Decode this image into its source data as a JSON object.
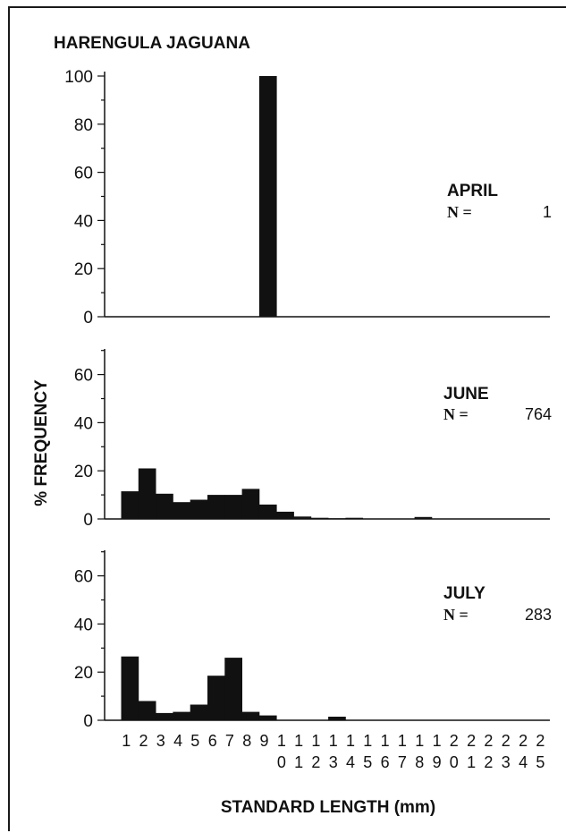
{
  "title": "HARENGULA JAGUANA",
  "ylabel": "% FREQUENCY",
  "xlabel": "STANDARD LENGTH (mm)",
  "x_tick_top": [
    "1",
    "2",
    "3",
    "4",
    "5",
    "6",
    "7",
    "8",
    "9",
    "1",
    "1",
    "1",
    "1",
    "1",
    "1",
    "1",
    "1",
    "1",
    "1",
    "2",
    "2",
    "2",
    "2",
    "2",
    "2"
  ],
  "x_tick_bottom": [
    "",
    "",
    "",
    "",
    "",
    "",
    "",
    "",
    "",
    "0",
    "1",
    "2",
    "3",
    "4",
    "5",
    "6",
    "7",
    "8",
    "9",
    "0",
    "1",
    "2",
    "3",
    "4",
    "5"
  ],
  "chart_data": [
    {
      "type": "bar",
      "panel": "April",
      "month_label": "APRIL",
      "n_label": "N  =",
      "n_value": "1",
      "categories": [
        "1",
        "2",
        "3",
        "4",
        "5",
        "6",
        "7",
        "8",
        "9",
        "10",
        "11",
        "12",
        "13",
        "14",
        "15",
        "16",
        "17",
        "18",
        "19",
        "20",
        "21",
        "22",
        "23",
        "24",
        "25"
      ],
      "values": [
        0,
        0,
        0,
        0,
        0,
        0,
        0,
        0,
        100,
        0,
        0,
        0,
        0,
        0,
        0,
        0,
        0,
        0,
        0,
        0,
        0,
        0,
        0,
        0,
        0
      ],
      "ylim": [
        0,
        100
      ],
      "yticks": [
        "0",
        "20",
        "40",
        "60",
        "80",
        "100"
      ],
      "xlabel": "STANDARD LENGTH (mm)",
      "ylabel": "% FREQUENCY"
    },
    {
      "type": "bar",
      "panel": "June",
      "month_label": "JUNE",
      "n_label": "N  =",
      "n_value": "764",
      "categories": [
        "1",
        "2",
        "3",
        "4",
        "5",
        "6",
        "7",
        "8",
        "9",
        "10",
        "11",
        "12",
        "13",
        "14",
        "15",
        "16",
        "17",
        "18",
        "19",
        "20",
        "21",
        "22",
        "23",
        "24",
        "25"
      ],
      "values": [
        11.5,
        21,
        10.5,
        7,
        8,
        10,
        10,
        12.5,
        6,
        3,
        1,
        0.5,
        0.3,
        0.5,
        0,
        0,
        0,
        0.8,
        0,
        0,
        0,
        0,
        0,
        0,
        0
      ],
      "ylim": [
        0,
        70
      ],
      "yticks": [
        "0",
        "20",
        "40",
        "60"
      ],
      "xlabel": "STANDARD LENGTH (mm)",
      "ylabel": "% FREQUENCY"
    },
    {
      "type": "bar",
      "panel": "July",
      "month_label": "JULY",
      "n_label": "N  =",
      "n_value": "283",
      "categories": [
        "1",
        "2",
        "3",
        "4",
        "5",
        "6",
        "7",
        "8",
        "9",
        "10",
        "11",
        "12",
        "13",
        "14",
        "15",
        "16",
        "17",
        "18",
        "19",
        "20",
        "21",
        "22",
        "23",
        "24",
        "25"
      ],
      "values": [
        26.5,
        8,
        3,
        3.5,
        6.5,
        18.5,
        26,
        3.5,
        2,
        0,
        0,
        0,
        1.5,
        0,
        0,
        0,
        0,
        0,
        0,
        0,
        0,
        0,
        0,
        0,
        0
      ],
      "ylim": [
        0,
        70
      ],
      "yticks": [
        "0",
        "20",
        "40",
        "60"
      ],
      "xlabel": "STANDARD LENGTH (mm)",
      "ylabel": "% FREQUENCY"
    }
  ]
}
